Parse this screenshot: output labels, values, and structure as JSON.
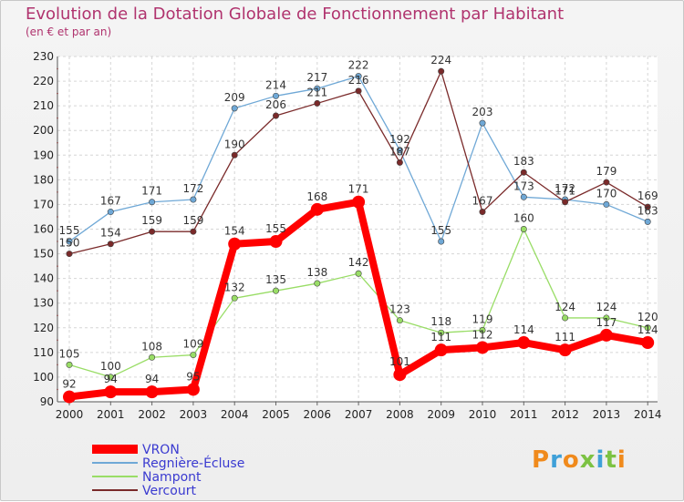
{
  "header": {
    "title": "Evolution de la Dotation Globale de Fonctionnement par Habitant",
    "subtitle": "(en € et par an)"
  },
  "logo": {
    "text": "Proxiti"
  },
  "chart_data": {
    "type": "line",
    "title": "Evolution de la Dotation Globale de Fonctionnement par Habitant",
    "subtitle": "(en € et par an)",
    "xlabel": "",
    "ylabel": "",
    "x": [
      "2000",
      "2001",
      "2002",
      "2003",
      "2004",
      "2005",
      "2006",
      "2007",
      "2008",
      "2009",
      "2010",
      "2011",
      "2012",
      "2013",
      "2014"
    ],
    "ylim": [
      90,
      230
    ],
    "yticks": [
      90,
      100,
      110,
      120,
      130,
      140,
      150,
      160,
      170,
      180,
      190,
      200,
      210,
      220,
      230
    ],
    "grid": true,
    "legend_position": "bottom-left",
    "series": [
      {
        "name": "VRON",
        "color": "#ff0000",
        "values": [
          92,
          94,
          94,
          95,
          154,
          155,
          168,
          171,
          101,
          111,
          112,
          114,
          111,
          117,
          114
        ]
      },
      {
        "name": "Regnière-Écluse",
        "color": "#6fa8d6",
        "values": [
          155,
          167,
          171,
          172,
          209,
          214,
          217,
          222,
          192,
          155,
          203,
          173,
          172,
          170,
          163
        ]
      },
      {
        "name": "Nampont",
        "color": "#99dd66",
        "values": [
          105,
          100,
          108,
          109,
          132,
          135,
          138,
          142,
          123,
          118,
          119,
          160,
          124,
          124,
          120
        ]
      },
      {
        "name": "Vercourt",
        "color": "#7a2a2a",
        "values": [
          150,
          154,
          159,
          159,
          190,
          206,
          211,
          216,
          187,
          224,
          167,
          183,
          171,
          179,
          169
        ]
      }
    ]
  }
}
